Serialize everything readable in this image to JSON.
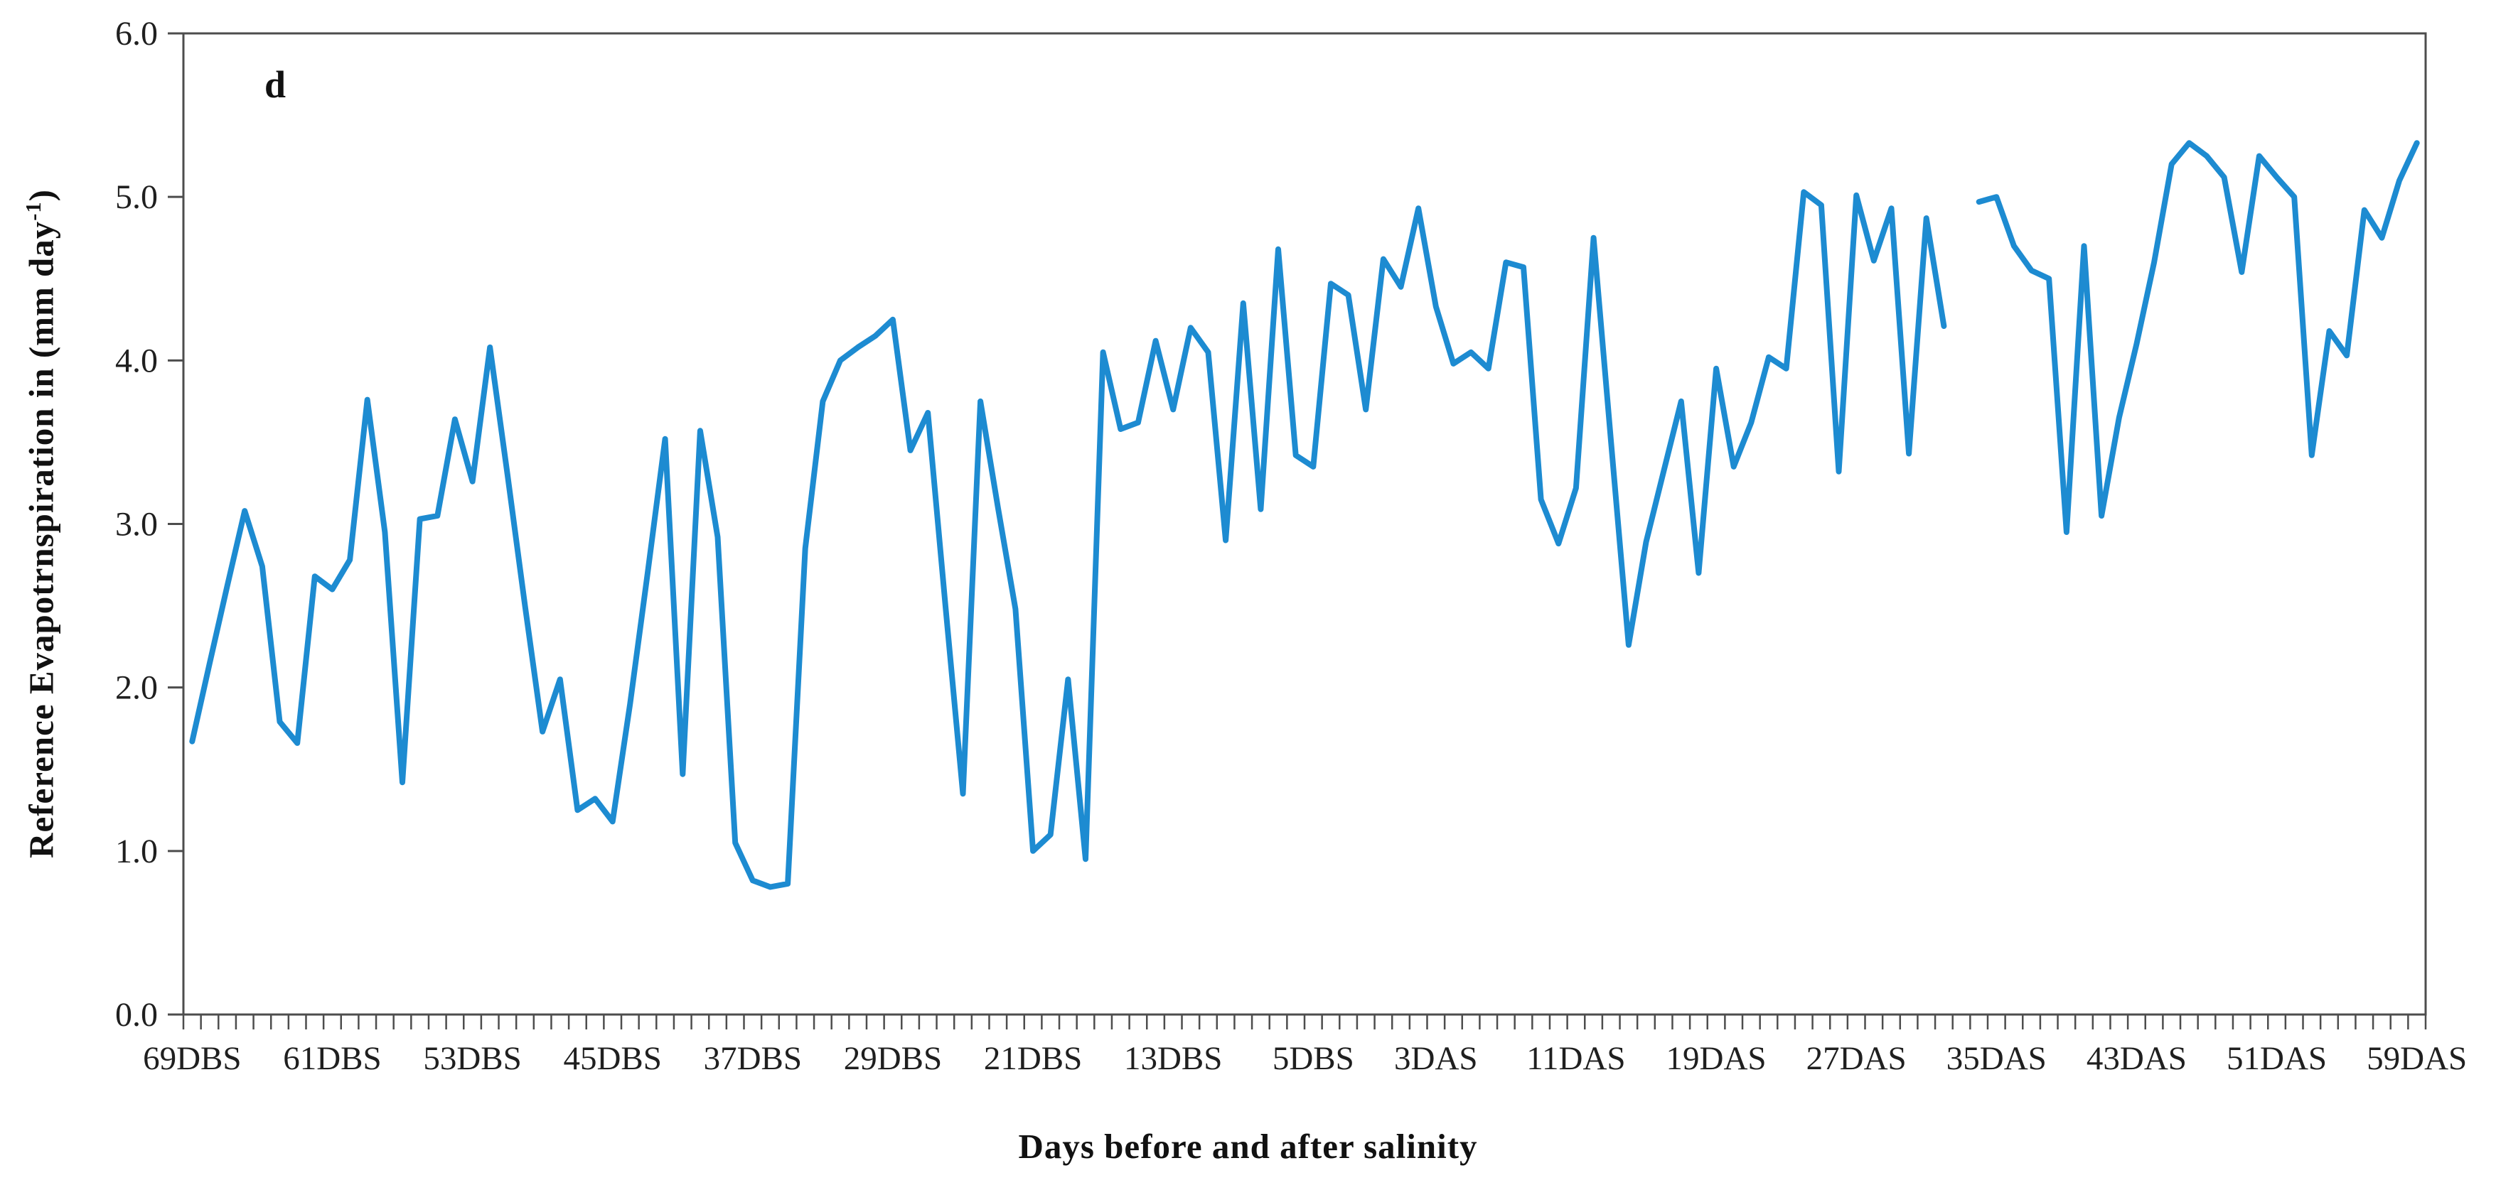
{
  "page": {
    "background_color": "#ffffff",
    "text_color": "#1f1f1f"
  },
  "chart_data": {
    "type": "line",
    "panel_label": "d",
    "title": "",
    "xlabel": "Days before and after salinity",
    "ylabel_prefix": "Reference Evapotrnspiration in (mm day",
    "ylabel_sup": "-1",
    "ylabel_suffix": ")",
    "ylim": [
      0,
      6
    ],
    "ytick_values": [
      0,
      1,
      2,
      3,
      4,
      5,
      6
    ],
    "ytick_labels": [
      "0.0",
      "1.0",
      "2.0",
      "3.0",
      "4.0",
      "5.0",
      "6.0"
    ],
    "n_points": 128,
    "x_unit_note": "daily values from 69 days before salinity (DBS) to 59 days after salinity (DAS)",
    "xtick_shown_indices": [
      0,
      8,
      16,
      24,
      32,
      40,
      48,
      56,
      64,
      71,
      79,
      87,
      95,
      103,
      111,
      119,
      127
    ],
    "xtick_shown_labels": [
      "69DBS",
      "61DBS",
      "53DBS",
      "45DBS",
      "37DBS",
      "29DBS",
      "21DBS",
      "13DBS",
      "5DBS",
      "3DAS",
      "11DAS",
      "19DAS",
      "27DAS",
      "35DAS",
      "43DAS",
      "51DAS",
      "59DAS"
    ],
    "grid": false,
    "legend": "none",
    "line_color": "#1d8bd1",
    "axis_color": "#4d4d4d",
    "values": [
      1.67,
      2.15,
      2.62,
      3.08,
      2.74,
      1.79,
      1.66,
      2.68,
      2.6,
      2.78,
      3.76,
      2.95,
      1.42,
      3.03,
      3.05,
      3.64,
      3.26,
      4.08,
      3.3,
      2.5,
      1.73,
      2.05,
      1.25,
      1.32,
      1.18,
      1.9,
      2.7,
      3.52,
      1.47,
      3.57,
      2.92,
      1.05,
      0.82,
      0.78,
      0.8,
      2.85,
      3.75,
      4.0,
      4.08,
      4.15,
      4.25,
      3.45,
      3.68,
      2.5,
      1.35,
      3.75,
      3.1,
      2.48,
      1.0,
      1.1,
      2.05,
      0.95,
      4.05,
      3.58,
      3.62,
      4.12,
      3.7,
      4.2,
      4.05,
      2.9,
      4.35,
      3.09,
      4.68,
      3.42,
      3.35,
      4.47,
      4.4,
      3.7,
      4.62,
      4.45,
      4.93,
      4.33,
      3.98,
      4.05,
      3.95,
      4.6,
      4.57,
      3.15,
      2.88,
      3.22,
      4.75,
      3.5,
      2.26,
      2.89,
      3.32,
      3.75,
      2.7,
      3.95,
      3.35,
      3.62,
      4.02,
      3.95,
      5.03,
      4.95,
      3.32,
      5.01,
      4.61,
      4.93,
      3.43,
      4.87,
      4.21,
      null,
      4.97,
      5.0,
      4.7,
      4.55,
      4.5,
      2.95,
      4.7,
      3.05,
      3.65,
      4.1,
      4.6,
      5.2,
      5.33,
      5.25,
      5.12,
      4.54,
      5.25,
      5.12,
      5.0,
      3.42,
      4.18,
      4.03,
      4.92,
      4.75,
      5.1,
      5.33
    ]
  }
}
